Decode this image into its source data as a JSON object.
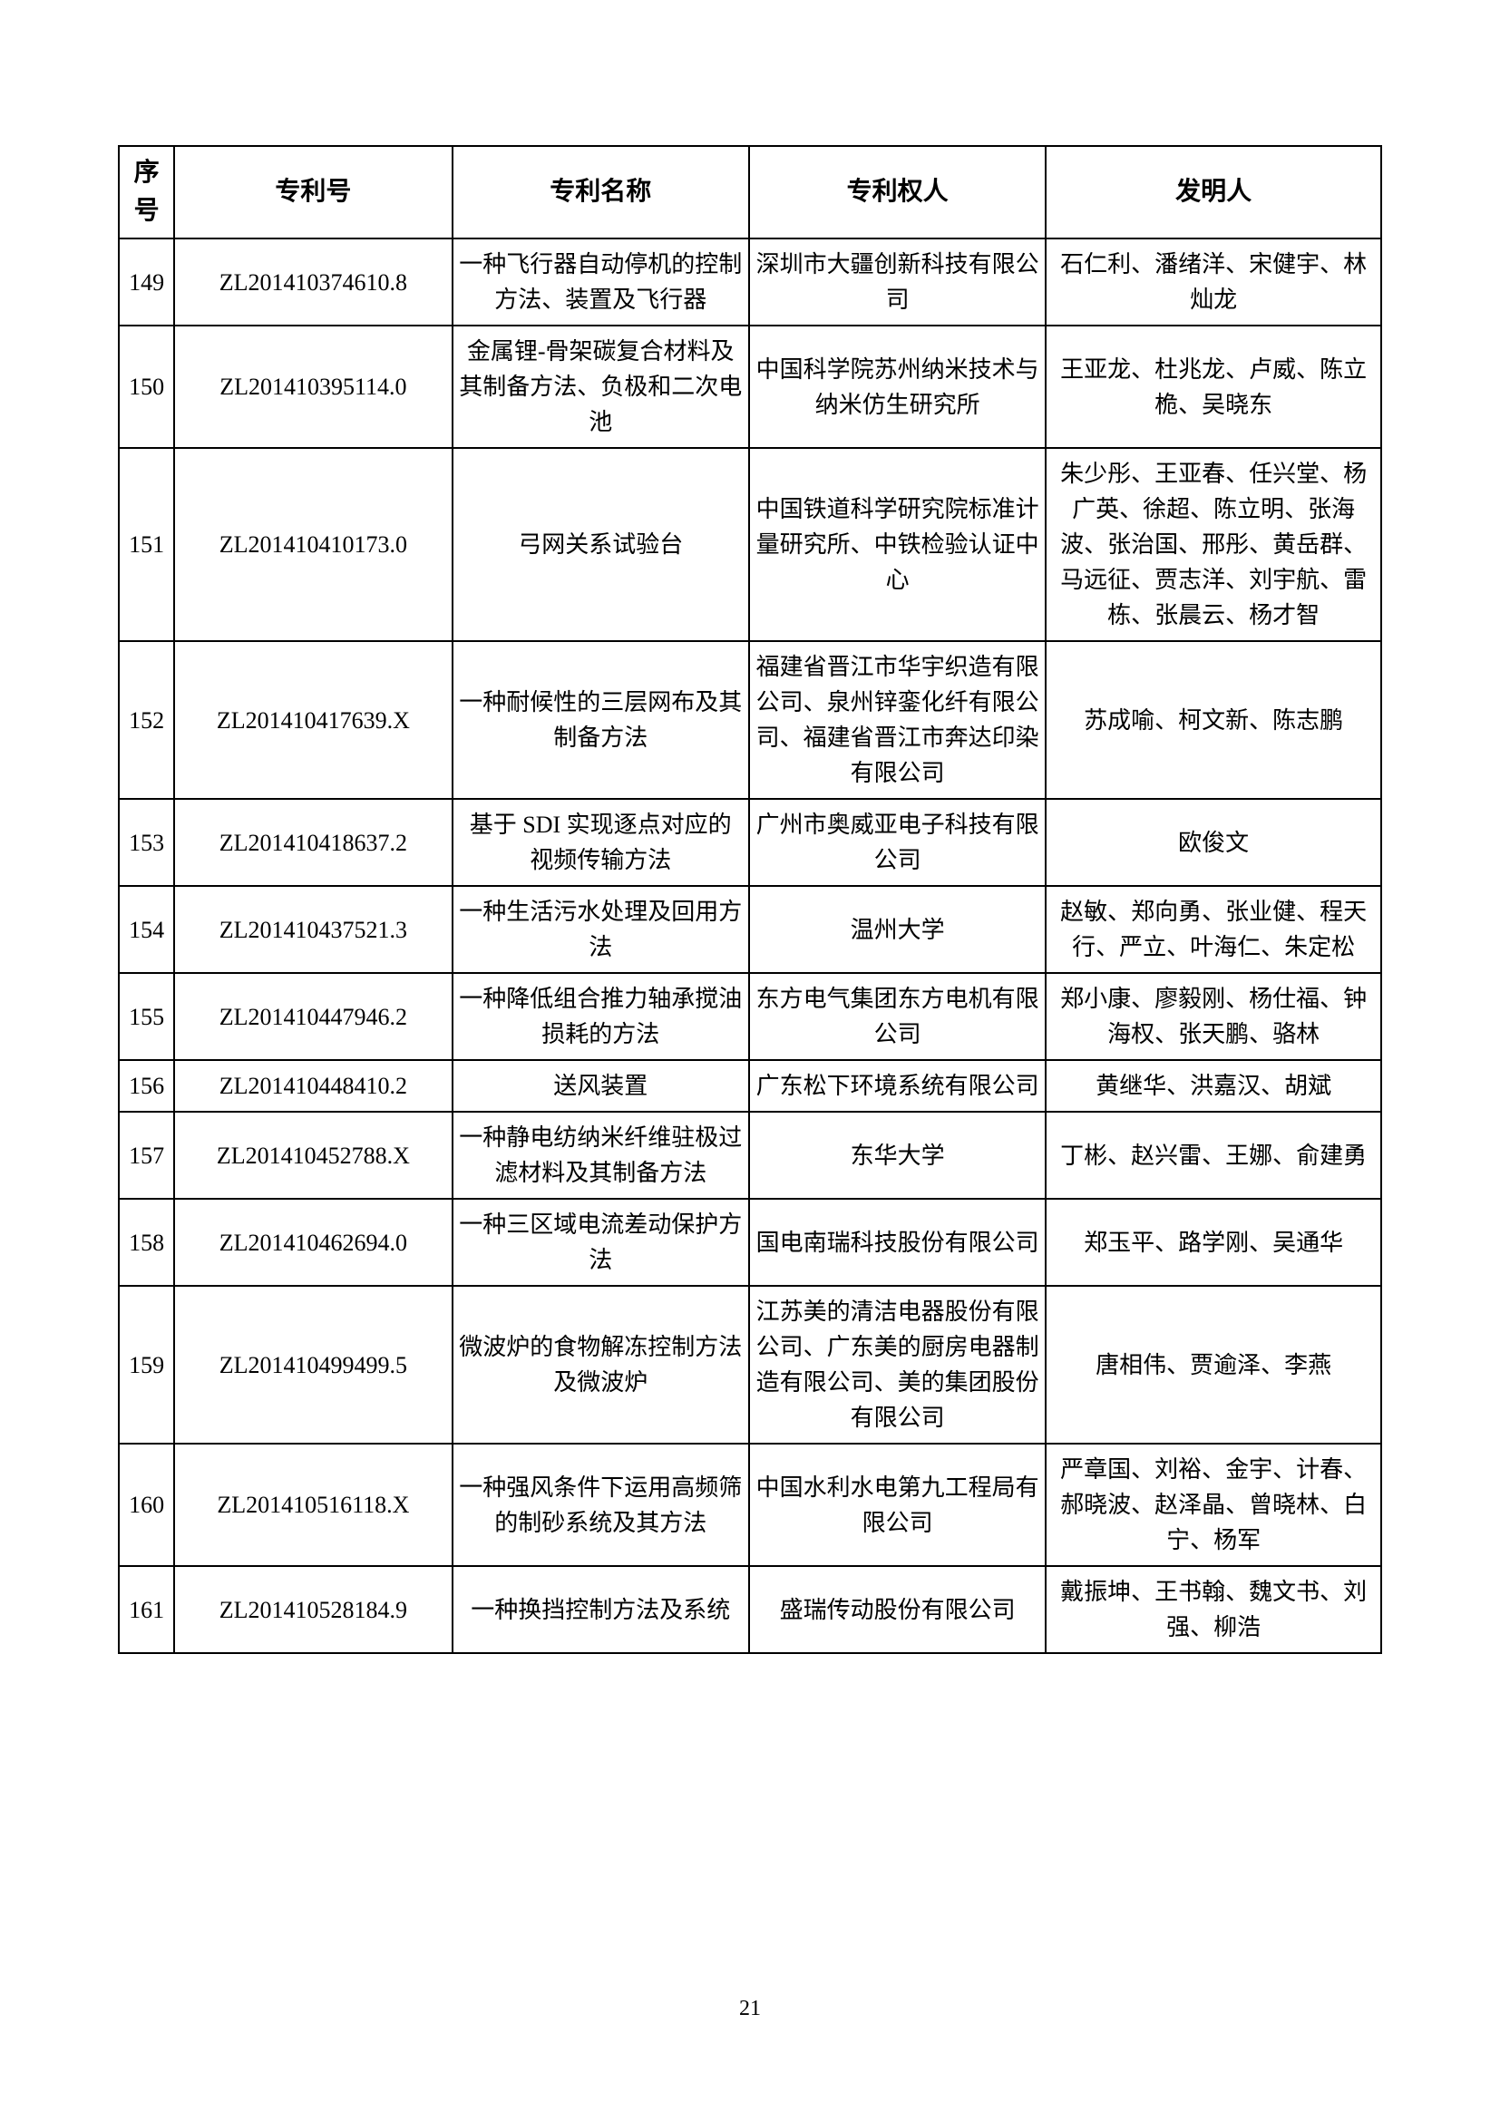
{
  "table": {
    "headers": {
      "seq": "序号",
      "patent_no": "专利号",
      "name": "专利名称",
      "owner": "专利权人",
      "inventor": "发明人"
    },
    "rows": [
      {
        "seq": "149",
        "patent_no": "ZL201410374610.8",
        "name": "一种飞行器自动停机的控制方法、装置及飞行器",
        "owner": "深圳市大疆创新科技有限公司",
        "inventor": "石仁利、潘绪洋、宋健宇、林灿龙"
      },
      {
        "seq": "150",
        "patent_no": "ZL201410395114.0",
        "name": "金属锂-骨架碳复合材料及其制备方法、负极和二次电池",
        "owner": "中国科学院苏州纳米技术与纳米仿生研究所",
        "inventor": "王亚龙、杜兆龙、卢威、陈立桅、吴晓东"
      },
      {
        "seq": "151",
        "patent_no": "ZL201410410173.0",
        "name": "弓网关系试验台",
        "owner": "中国铁道科学研究院标准计量研究所、中铁检验认证中心",
        "inventor": "朱少彤、王亚春、任兴堂、杨广英、徐超、陈立明、张海波、张治国、邢彤、黄岳群、马远征、贾志洋、刘宇航、雷栋、张晨云、杨才智"
      },
      {
        "seq": "152",
        "patent_no": "ZL201410417639.X",
        "name": "一种耐候性的三层网布及其制备方法",
        "owner": "福建省晋江市华宇织造有限公司、泉州锌銮化纤有限公司、福建省晋江市奔达印染有限公司",
        "inventor": "苏成喻、柯文新、陈志鹏"
      },
      {
        "seq": "153",
        "patent_no": "ZL201410418637.2",
        "name": "基于 SDI 实现逐点对应的视频传输方法",
        "owner": "广州市奥威亚电子科技有限公司",
        "inventor": "欧俊文"
      },
      {
        "seq": "154",
        "patent_no": "ZL201410437521.3",
        "name": "一种生活污水处理及回用方法",
        "owner": "温州大学",
        "inventor": "赵敏、郑向勇、张业健、程天行、严立、叶海仁、朱定松"
      },
      {
        "seq": "155",
        "patent_no": "ZL201410447946.2",
        "name": "一种降低组合推力轴承搅油损耗的方法",
        "owner": "东方电气集团东方电机有限公司",
        "inventor": "郑小康、廖毅刚、杨仕福、钟海权、张天鹏、骆林"
      },
      {
        "seq": "156",
        "patent_no": "ZL201410448410.2",
        "name": "送风装置",
        "owner": "广东松下环境系统有限公司",
        "inventor": "黄继华、洪嘉汉、胡斌"
      },
      {
        "seq": "157",
        "patent_no": "ZL201410452788.X",
        "name": "一种静电纺纳米纤维驻极过滤材料及其制备方法",
        "owner": "东华大学",
        "inventor": "丁彬、赵兴雷、王娜、俞建勇"
      },
      {
        "seq": "158",
        "patent_no": "ZL201410462694.0",
        "name": "一种三区域电流差动保护方法",
        "owner": "国电南瑞科技股份有限公司",
        "inventor": "郑玉平、路学刚、吴通华"
      },
      {
        "seq": "159",
        "patent_no": "ZL201410499499.5",
        "name": "微波炉的食物解冻控制方法及微波炉",
        "owner": "江苏美的清洁电器股份有限公司、广东美的厨房电器制造有限公司、美的集团股份有限公司",
        "inventor": "唐相伟、贾逾泽、李燕"
      },
      {
        "seq": "160",
        "patent_no": "ZL201410516118.X",
        "name": "一种强风条件下运用高频筛的制砂系统及其方法",
        "owner": "中国水利水电第九工程局有限公司",
        "inventor": "严章国、刘裕、金宇、计春、郝晓波、赵泽晶、曾晓林、白宁、杨军"
      },
      {
        "seq": "161",
        "patent_no": "ZL201410528184.9",
        "name": "一种换挡控制方法及系统",
        "owner": "盛瑞传动股份有限公司",
        "inventor": "戴振坤、王书翰、魏文书、刘强、柳浩"
      }
    ]
  },
  "page_number": "21"
}
